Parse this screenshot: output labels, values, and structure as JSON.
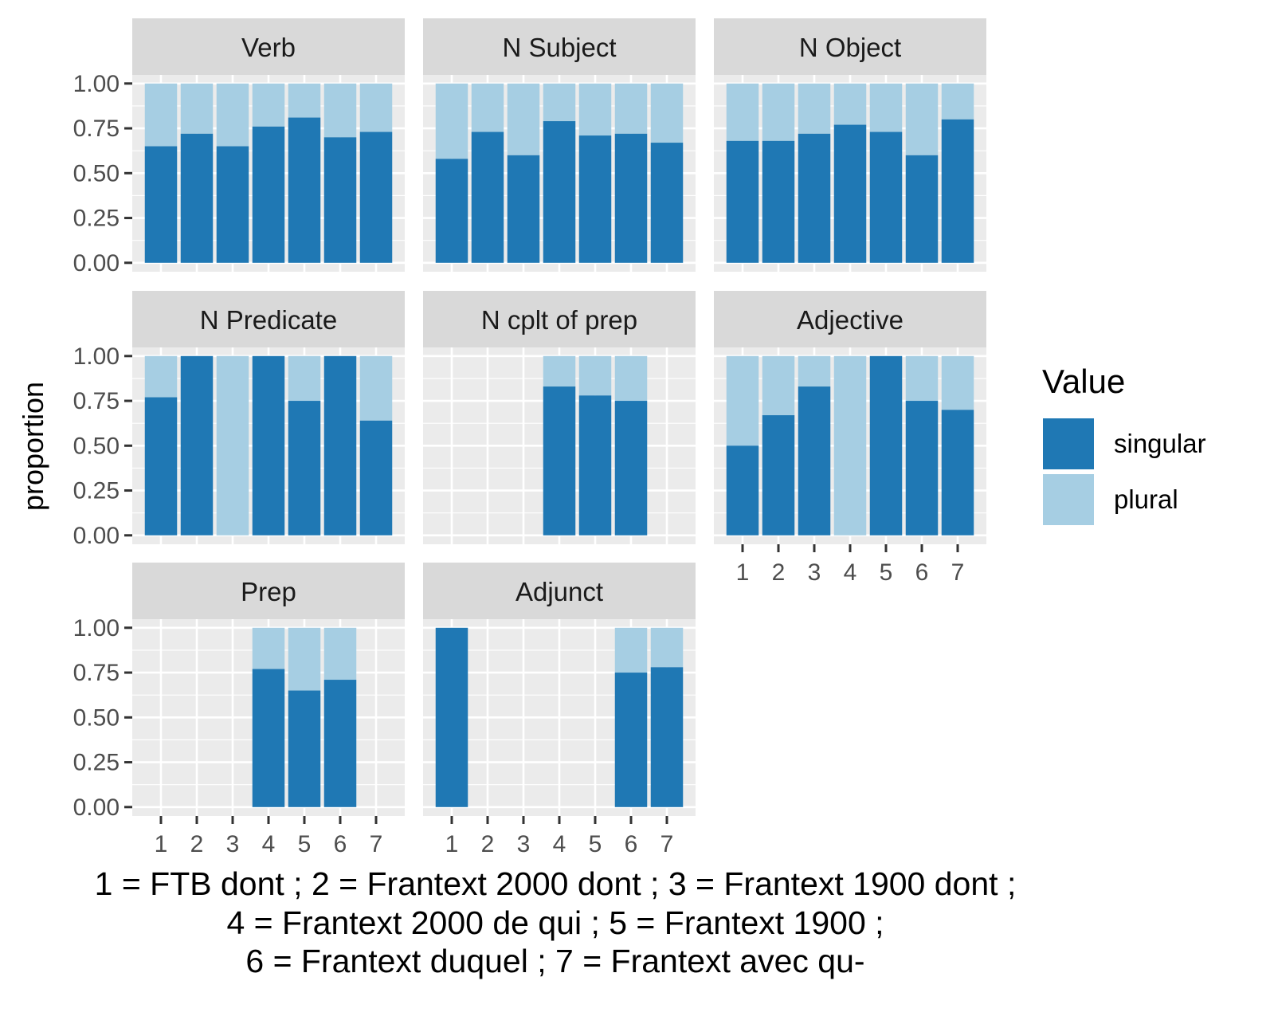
{
  "chart_data": {
    "type": "bar",
    "stacked": true,
    "ylabel": "proportion",
    "xlabel": "",
    "ylim": [
      0,
      1
    ],
    "y_ticks": [
      "0.00",
      "0.25",
      "0.50",
      "0.75",
      "1.00"
    ],
    "categories": [
      "1",
      "2",
      "3",
      "4",
      "5",
      "6",
      "7"
    ],
    "legend": {
      "title": "Value",
      "placement": "right",
      "entries": [
        {
          "name": "singular",
          "color": "#1f78b4"
        },
        {
          "name": "plural",
          "color": "#a6cee3"
        }
      ]
    },
    "colors": {
      "singular": "#1f78b4",
      "plural": "#a6cee3",
      "panel_bg": "#ebebeb",
      "strip_bg": "#d9d9d9",
      "grid": "#ffffff"
    },
    "grid": true,
    "caption": [
      "1 = FTB dont ; 2 = Frantext 2000 dont ; 3 = Frantext 1900 dont ;",
      "4 = Frantext 2000 de qui ; 5 = Frantext 1900 ;",
      "6 = Frantext duquel ; 7 = Frantext avec qu-"
    ],
    "panels": [
      {
        "title": "Verb",
        "singular": [
          0.65,
          0.72,
          0.65,
          0.76,
          0.81,
          0.7,
          0.73
        ]
      },
      {
        "title": "N Subject",
        "singular": [
          0.58,
          0.73,
          0.6,
          0.79,
          0.71,
          0.72,
          0.67
        ]
      },
      {
        "title": "N Object",
        "singular": [
          0.68,
          0.68,
          0.72,
          0.77,
          0.73,
          0.6,
          0.8
        ]
      },
      {
        "title": "N Predicate",
        "singular": [
          0.77,
          1.0,
          0.0,
          1.0,
          0.75,
          1.0,
          0.64
        ]
      },
      {
        "title": "N cplt of prep",
        "singular": [
          null,
          null,
          null,
          0.83,
          0.78,
          0.75,
          null
        ]
      },
      {
        "title": "Adjective",
        "singular": [
          0.5,
          0.67,
          0.83,
          0.0,
          1.0,
          0.75,
          0.7
        ]
      },
      {
        "title": "Prep",
        "singular": [
          null,
          null,
          null,
          0.77,
          0.65,
          0.71,
          null
        ]
      },
      {
        "title": "Adjunct",
        "singular": [
          1.0,
          null,
          null,
          null,
          null,
          0.75,
          0.78
        ]
      }
    ]
  }
}
